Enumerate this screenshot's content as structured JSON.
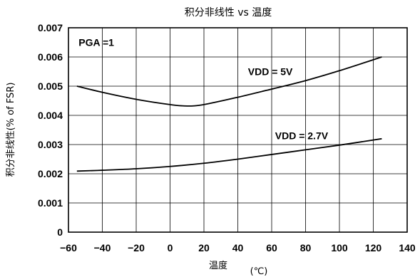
{
  "chart_data": {
    "type": "line",
    "title": "积分非线性 vs 温度",
    "xlabel": "温度",
    "xunit": "(℃)",
    "ylabel": "积分非线性(% of FSR)",
    "xlim": [
      -60,
      140
    ],
    "ylim": [
      0,
      0.007
    ],
    "grid": true,
    "x_ticks": [
      "−60",
      "−40",
      "−20",
      "0",
      "20",
      "40",
      "60",
      "80",
      "100",
      "120",
      "140"
    ],
    "y_ticks": [
      "0",
      "0.001",
      "0.002",
      "0.003",
      "0.004",
      "0.005",
      "0.006",
      "0.007"
    ],
    "x_tick_values": [
      -60,
      -40,
      -20,
      0,
      20,
      40,
      60,
      80,
      100,
      120,
      140
    ],
    "y_tick_values": [
      0,
      0.001,
      0.002,
      0.003,
      0.004,
      0.005,
      0.006,
      0.007
    ],
    "annotations": [
      {
        "text": "PGA =1",
        "x": -54,
        "y": 0.0065
      },
      {
        "text": "VDD = 5V",
        "x": 46,
        "y": 0.0055
      },
      {
        "text": "VDD = 2.7V",
        "x": 62,
        "y": 0.0033
      }
    ],
    "series": [
      {
        "name": "VDD = 5V",
        "x": [
          -55,
          -40,
          -20,
          0,
          10,
          20,
          40,
          60,
          80,
          100,
          125
        ],
        "y": [
          0.005,
          0.00479,
          0.00455,
          0.00437,
          0.00432,
          0.00437,
          0.00462,
          0.0049,
          0.00519,
          0.00553,
          0.006
        ]
      },
      {
        "name": "VDD = 2.7V",
        "x": [
          -55,
          -40,
          -20,
          0,
          20,
          40,
          60,
          80,
          100,
          125
        ],
        "y": [
          0.00209,
          0.00212,
          0.00217,
          0.00225,
          0.00236,
          0.0025,
          0.00266,
          0.00282,
          0.00298,
          0.0032
        ]
      }
    ]
  }
}
